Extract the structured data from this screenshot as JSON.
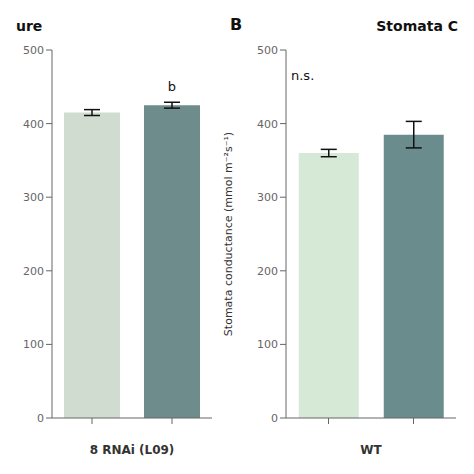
{
  "chart_data": [
    {
      "type": "bar",
      "title": "ure",
      "categories": [
        null,
        null
      ],
      "values": [
        415,
        425
      ],
      "errors": [
        4,
        4
      ],
      "colors": [
        "#d0dcd0",
        "#6e8c8c"
      ],
      "x_label": "8 RNAi (L09)",
      "ylim": [
        0,
        500
      ],
      "yticks": [
        0,
        100,
        200,
        300,
        400,
        500
      ],
      "annotations": [
        {
          "text": "b",
          "category": 1,
          "y": 437
        }
      ]
    },
    {
      "type": "bar",
      "title": "Stomata C",
      "categories": [
        null,
        null
      ],
      "values": [
        360,
        385
      ],
      "errors": [
        5,
        18
      ],
      "colors": [
        "#d6e8d6",
        "#6b8c8c"
      ],
      "x_label": "WT",
      "y_label": "Stomata conductance (mmol m⁻²s⁻¹)",
      "ylim": [
        0,
        500
      ],
      "yticks": [
        0,
        100,
        200,
        300,
        400,
        500
      ],
      "annotations": [
        {
          "text": "n.s.",
          "y": 465
        },
        {
          "text": "B"
        }
      ]
    }
  ]
}
